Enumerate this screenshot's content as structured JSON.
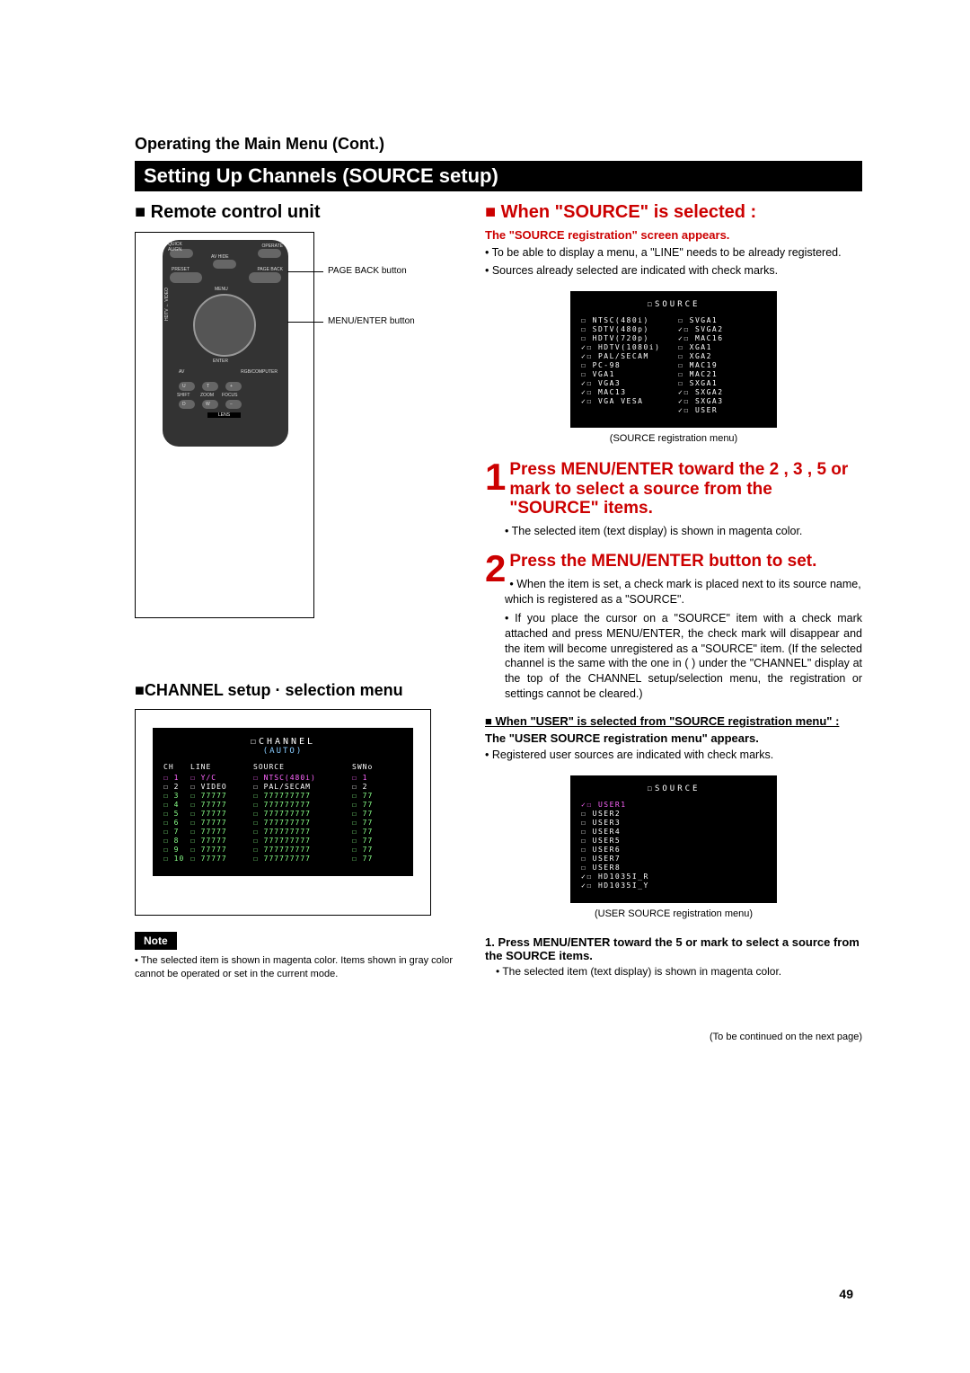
{
  "page": {
    "operating_heading": "Operating the Main Menu (Cont.)",
    "section_title": "Setting Up Channels (SOURCE setup)",
    "page_number": "49",
    "continued": "(To be continued on the next page)"
  },
  "left": {
    "remote_heading": "■ Remote control unit",
    "remote_labels": {
      "quick_align": "QUICK\nALIGN.",
      "operate": "OPERATE",
      "av_hide": "AV HIDE",
      "preset": "PRESET",
      "page_back": "PAGE BACK",
      "hdtv": "HDTV",
      "video": "VIDEO",
      "menu_enter": "MENU\nENTER",
      "av": "AV",
      "rgb_computer": "RGB/COMPUTER",
      "shift": "SHIFT",
      "zoom": "ZOOM",
      "focus": "FOCUS",
      "lens": "LENS",
      "u": "U",
      "t": "T",
      "plus": "+",
      "d": "D",
      "w": "W",
      "minus": "−"
    },
    "callout_pageback": "PAGE BACK button",
    "callout_menuenter": "MENU/ENTER button",
    "channel_heading": "■CHANNEL setup · selection menu",
    "channel_menu_title": "CHANNEL",
    "channel_menu_sub": "(AUTO)",
    "channel_headers": {
      "ch": "CH",
      "line": "LINE",
      "source": "SOURCE",
      "swno": "SWNo"
    },
    "channel_rows": [
      {
        "ch": "1",
        "line": "Y/C",
        "source": "NTSC(480i)",
        "swno": "1",
        "cls": "magenta"
      },
      {
        "ch": "2",
        "line": "VIDEO",
        "source": "PAL/SECAM",
        "swno": "2",
        "cls": ""
      },
      {
        "ch": "3",
        "line": "77777",
        "source": "777777777",
        "swno": "77",
        "cls": "gray"
      },
      {
        "ch": "4",
        "line": "77777",
        "source": "777777777",
        "swno": "77",
        "cls": "gray"
      },
      {
        "ch": "5",
        "line": "77777",
        "source": "777777777",
        "swno": "77",
        "cls": "gray"
      },
      {
        "ch": "6",
        "line": "77777",
        "source": "777777777",
        "swno": "77",
        "cls": "gray"
      },
      {
        "ch": "7",
        "line": "77777",
        "source": "777777777",
        "swno": "77",
        "cls": "gray"
      },
      {
        "ch": "8",
        "line": "77777",
        "source": "777777777",
        "swno": "77",
        "cls": "gray"
      },
      {
        "ch": "9",
        "line": "77777",
        "source": "777777777",
        "swno": "77",
        "cls": "gray"
      },
      {
        "ch": "10",
        "line": "77777",
        "source": "777777777",
        "swno": "77",
        "cls": "gray"
      }
    ],
    "note_label": "Note",
    "note_text": "• The selected item is shown in magenta color. Items shown in gray color cannot be operated or set in the current mode."
  },
  "right": {
    "when_source_heading": "■ When \"SOURCE\" is selected :",
    "source_reg_appears": "The \"SOURCE registration\" screen appears.",
    "source_bullet1": "• To be able to display a menu, a \"LINE\" needs to be already registered.",
    "source_bullet2": "• Sources already selected are indicated with check marks.",
    "source_menu_title": "SOURCE",
    "source_left_items": [
      "☐ NTSC(480i)",
      "☐ SDTV(480p)",
      "☐ HDTV(720p)",
      "✓☐ HDTV(1080i)",
      "✓☐ PAL/SECAM",
      "☐ PC-98",
      "☐ VGA1",
      "✓☐ VGA3",
      "✓☐ MAC13",
      "✓☐ VGA VESA"
    ],
    "source_right_items": [
      "☐ SVGA1",
      "✓☐ SVGA2",
      "✓☐ MAC16",
      "☐ XGA1",
      "☐ XGA2",
      "☐ MAC19",
      "☐ MAC21",
      "☐ SXGA1",
      "✓☐ SXGA2",
      "✓☐ SXGA3",
      "✓☐ USER"
    ],
    "source_caption": "(SOURCE registration menu)",
    "step1_text": "Press MENU/ENTER toward the 2 , 3 , 5 or    mark to select a source from the \"SOURCE\" items.",
    "step1_bullet": "• The selected item (text display) is shown in magenta color.",
    "step2_text": "Press the MENU/ENTER button to set.",
    "step2_bullet1": "• When the item is set, a check mark is placed next to its source name, which is registered as a \"SOURCE\".",
    "step2_bullet2": "• If you place the cursor on a \"SOURCE\" item with a check mark attached and press MENU/ENTER, the check mark will disappear and the item will become unregistered as a \"SOURCE\" item. (If the selected channel is the same with the one in (      ) under the \"CHANNEL\" display at the top of the CHANNEL setup/selection menu, the registration or settings cannot be cleared.)",
    "user_heading": "■ When \"USER\" is selected from \"SOURCE registration menu\" :",
    "user_sub_bold": "The \"USER SOURCE registration menu\" appears.",
    "user_bullet": "•  Registered user sources are indicated with check marks.",
    "user_menu_title": "SOURCE",
    "user_items": [
      "✓☐ USER1",
      "☐ USER2",
      "☐ USER3",
      "☐ USER4",
      "☐ USER5",
      "☐ USER6",
      "☐ USER7",
      "☐ USER8",
      "✓☐ HD1035I_R",
      "✓☐ HD1035I_Y"
    ],
    "user_caption": "(USER SOURCE registration menu)",
    "user_step1": "1. Press MENU/ENTER toward the 5  or    mark to select a source from the SOURCE items.",
    "user_step1_bullet": "• The selected item (text display) is shown in magenta color."
  }
}
